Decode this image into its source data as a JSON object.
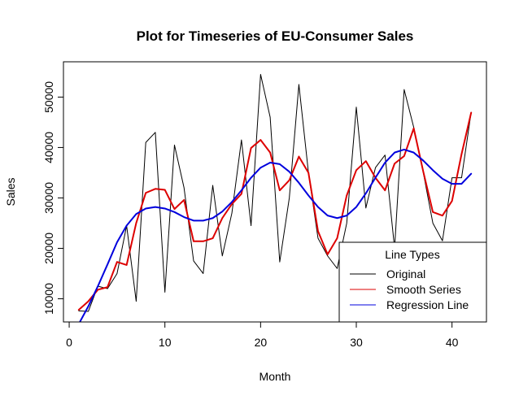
{
  "chart_data": {
    "type": "line",
    "title": "Plot for Timeseries of EU-Consumer Sales",
    "xlabel": "Month",
    "ylabel": "Sales",
    "xlim": [
      -0.6,
      43.6
    ],
    "ylim": [
      5400,
      57000
    ],
    "x_ticks": [
      0,
      10,
      20,
      30,
      40
    ],
    "y_ticks": [
      10000,
      20000,
      30000,
      40000,
      50000
    ],
    "grid": false,
    "colors": {
      "original": "#000000",
      "smooth": "#ff0000",
      "regression": "#0000ff"
    },
    "legend": {
      "title": "Line Types",
      "position": "bottom-right",
      "entries": [
        "Original",
        "Smooth Series",
        "Regression Line"
      ]
    },
    "series": [
      {
        "name": "Original",
        "color": "#000000",
        "width": 1,
        "x": [
          1,
          2,
          3,
          4,
          5,
          6,
          7,
          8,
          9,
          10,
          11,
          12,
          13,
          14,
          15,
          16,
          17,
          18,
          19,
          20,
          21,
          22,
          23,
          24,
          25,
          26,
          27,
          28,
          29,
          30,
          31,
          32,
          33,
          34,
          35,
          36,
          37,
          38,
          39,
          40,
          41,
          42
        ],
        "y": [
          7600,
          7500,
          12500,
          12000,
          15000,
          24500,
          9500,
          41000,
          43000,
          11300,
          40500,
          32000,
          17500,
          15000,
          32500,
          18500,
          27000,
          41500,
          24500,
          54500,
          46000,
          17300,
          30000,
          52500,
          35000,
          22000,
          18500,
          16000,
          25000,
          48000,
          28000,
          36000,
          38500,
          20000,
          51500,
          44000,
          35000,
          25000,
          21500,
          34000,
          34000,
          47000
        ]
      },
      {
        "name": "Smooth Series",
        "color": "#dd0000",
        "width": 2,
        "x": [
          1,
          2,
          3,
          4,
          5,
          6,
          7,
          8,
          9,
          10,
          11,
          12,
          13,
          14,
          15,
          16,
          17,
          18,
          19,
          20,
          21,
          22,
          23,
          24,
          25,
          26,
          27,
          28,
          29,
          30,
          31,
          32,
          33,
          34,
          35,
          36,
          37,
          38,
          39,
          40,
          41,
          42
        ],
        "y": [
          7800,
          9500,
          11800,
          12300,
          17300,
          16700,
          25000,
          31000,
          31800,
          31600,
          27800,
          29600,
          21400,
          21400,
          22000,
          26000,
          28800,
          30800,
          39900,
          41500,
          39000,
          31500,
          33500,
          38200,
          35000,
          23400,
          18800,
          22000,
          30500,
          35500,
          37300,
          34000,
          31500,
          36800,
          38300,
          43800,
          35200,
          27200,
          26500,
          29400,
          38700,
          46900
        ]
      },
      {
        "name": "Regression Line",
        "color": "#0000dd",
        "width": 2,
        "x": [
          1,
          2,
          3,
          4,
          5,
          6,
          7,
          8,
          9,
          10,
          11,
          12,
          13,
          14,
          15,
          16,
          17,
          18,
          19,
          20,
          21,
          22,
          23,
          24,
          25,
          26,
          27,
          28,
          29,
          30,
          31,
          32,
          33,
          34,
          35,
          36,
          37,
          38,
          39,
          40,
          41,
          42
        ],
        "y": [
          5000,
          8500,
          12500,
          16800,
          21200,
          24500,
          26800,
          27900,
          28200,
          27900,
          27200,
          26200,
          25500,
          25500,
          26000,
          27300,
          29200,
          31500,
          34000,
          36000,
          37000,
          36700,
          35200,
          33000,
          30500,
          28200,
          26500,
          26000,
          26500,
          28200,
          30900,
          34000,
          37000,
          39000,
          39600,
          39000,
          37400,
          35500,
          33800,
          32800,
          32800,
          34800
        ]
      }
    ]
  }
}
